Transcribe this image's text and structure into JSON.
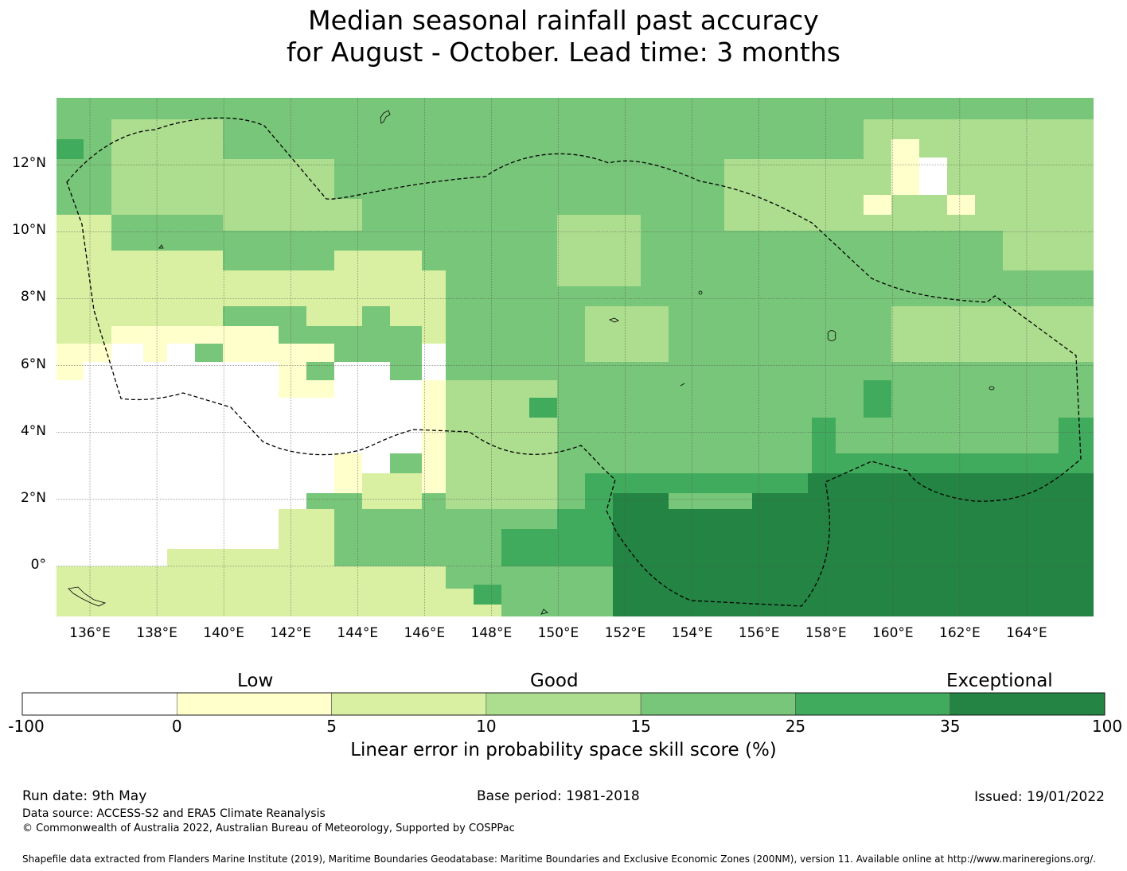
{
  "title": {
    "line1": "Median seasonal rainfall past accuracy",
    "line2": "for August - October. Lead time: 3 months"
  },
  "map": {
    "lon_labels": [
      "136°E",
      "138°E",
      "140°E",
      "142°E",
      "144°E",
      "146°E",
      "148°E",
      "150°E",
      "152°E",
      "154°E",
      "156°E",
      "158°E",
      "160°E",
      "162°E",
      "164°E"
    ],
    "lat_labels": [
      "12°N",
      "10°N",
      "8°N",
      "6°N",
      "4°N",
      "2°N",
      "0°"
    ],
    "lon_range": [
      135,
      166
    ],
    "lat_range": [
      -1.5,
      14
    ],
    "grid": true,
    "eez_boundary": "dashed black line",
    "coastlines": "thin black outlines"
  },
  "colorbar": {
    "categories": [
      "Low",
      "Good",
      "Exceptional"
    ],
    "ticks": [
      "-100",
      "0",
      "5",
      "10",
      "15",
      "25",
      "35",
      "100"
    ],
    "colors": [
      "#ffffff",
      "#ffffcc",
      "#d9f0a3",
      "#addd8e",
      "#78c679",
      "#41ab5d",
      "#238443"
    ],
    "label": "Linear error in probability space skill score (%)"
  },
  "footer": {
    "run_date": "Run date: 9th May",
    "base_period": "Base period: 1981-2018",
    "issued": "Issued: 19/01/2022",
    "data_source": "Data source: ACCESS-S2 and ERA5 Climate Reanalysis",
    "copyright": "© Commonwealth of Australia 2022, Australian Bureau of Meteorology, Supported by COSPPac",
    "shapefile": "Shapefile data extracted from Flanders Marine Institute (2019), Maritime Boundaries Geodatabase: Maritime Boundaries and Exclusive Economic Zones (200NM), version 11. Available online at http://www.marineregions.org/."
  }
}
